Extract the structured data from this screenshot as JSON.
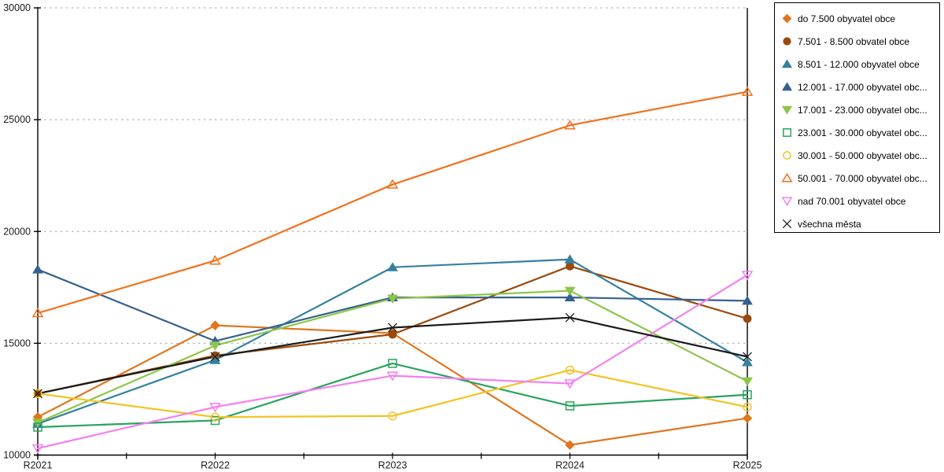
{
  "chart_data": {
    "type": "line",
    "title": "",
    "xlabel": "",
    "ylabel": "",
    "categories": [
      "R2021",
      "R2022",
      "R2023",
      "R2024",
      "R2025"
    ],
    "y_axis": {
      "min": 10000,
      "max": 30000,
      "step": 5000,
      "tick_labels": [
        "10000",
        "15000",
        "20000",
        "25000",
        "30000"
      ],
      "gridlines": "dotted"
    },
    "legend_position": "top-right-outside",
    "series": [
      {
        "name": "do 7.500 obyvatel obce",
        "color": "#E0751C",
        "marker": "diamond",
        "marker_fill": "solid",
        "values": [
          11700,
          15800,
          15450,
          10450,
          11650
        ]
      },
      {
        "name": "7.501 - 8.500 obvatel obce",
        "color": "#9A4A0D",
        "marker": "circle",
        "marker_fill": "solid",
        "values": [
          12750,
          14450,
          15400,
          18450,
          16100
        ]
      },
      {
        "name": "8.501 - 12.000 obyvatel obce",
        "color": "#35809F",
        "marker": "triangle-up",
        "marker_fill": "solid",
        "values": [
          11400,
          14250,
          18400,
          18750,
          14150
        ]
      },
      {
        "name": "12.001 - 17.000 obyvatel obc...",
        "color": "#36618E",
        "marker": "triangle-up",
        "marker_fill": "solid",
        "values": [
          18300,
          15100,
          17050,
          17050,
          16900
        ]
      },
      {
        "name": "17.001 - 23.000 obyvatel obc...",
        "color": "#8DC549",
        "marker": "triangle-down",
        "marker_fill": "solid",
        "values": [
          11450,
          14900,
          17000,
          17350,
          13300
        ]
      },
      {
        "name": "23.001 - 30.000 obyvatel obc...",
        "color": "#29A360",
        "marker": "square",
        "marker_fill": "open",
        "values": [
          11250,
          11550,
          14100,
          12200,
          12700
        ]
      },
      {
        "name": "30.001 - 50.000 obyvatel obc...",
        "color": "#F2C424",
        "marker": "circle",
        "marker_fill": "open",
        "values": [
          12750,
          11700,
          11750,
          13800,
          12150
        ]
      },
      {
        "name": "50.001 - 70.000 obyvatel obc...",
        "color": "#F2711E",
        "marker": "triangle-up",
        "marker_fill": "open",
        "values": [
          16350,
          18700,
          22100,
          24750,
          26250
        ]
      },
      {
        "name": "nad 70.001 obyvatel obce",
        "color": "#F57FF0",
        "marker": "triangle-down",
        "marker_fill": "open",
        "values": [
          10300,
          12150,
          13550,
          13200,
          18050
        ]
      },
      {
        "name": "všechna města",
        "color": "#1A1A1A",
        "marker": "x",
        "marker_fill": "line",
        "values": [
          12750,
          14400,
          15700,
          16150,
          14400
        ]
      }
    ],
    "colors": {
      "axis": "#000000",
      "gridline": "#B3B3B3",
      "tick_text": "#1A1A1A",
      "background": "#FFFFFF"
    }
  }
}
